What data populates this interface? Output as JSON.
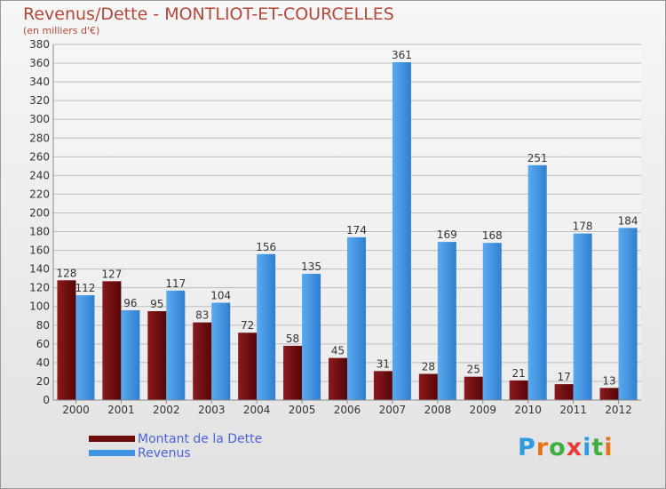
{
  "header": {
    "title": "Revenus/Dette - MONTLIOT-ET-COURCELLES",
    "subtitle": "(en milliers d'€)"
  },
  "legend": {
    "items": [
      {
        "label": "Montant de la Dette",
        "color": "#6e0d10"
      },
      {
        "label": "Revenus",
        "color": "#3f95df"
      }
    ]
  },
  "brand": {
    "text": "Proxiti",
    "colors": [
      "#2e9adf",
      "#e6731a",
      "#3fb03f",
      "#e63c3c",
      "#2e9adf",
      "#3fb03f",
      "#e6731a"
    ]
  },
  "chart_data": {
    "type": "bar",
    "title": "Revenus/Dette - MONTLIOT-ET-COURCELLES",
    "subtitle": "(en milliers d'€)",
    "categories": [
      "2000",
      "2001",
      "2002",
      "2003",
      "2004",
      "2005",
      "2006",
      "2007",
      "2008",
      "2009",
      "2010",
      "2011",
      "2012"
    ],
    "series": [
      {
        "name": "Montant de la Dette",
        "color": "#6e0d10",
        "values": [
          128,
          127,
          95,
          83,
          72,
          58,
          45,
          31,
          28,
          25,
          21,
          17,
          13
        ]
      },
      {
        "name": "Revenus",
        "color": "#3f95df",
        "values": [
          112,
          96,
          117,
          104,
          156,
          135,
          174,
          361,
          169,
          168,
          251,
          178,
          184
        ]
      }
    ],
    "ylim": [
      0,
      380
    ],
    "ytick_step": 20,
    "grid": true,
    "legend_position": "bottom-left"
  }
}
